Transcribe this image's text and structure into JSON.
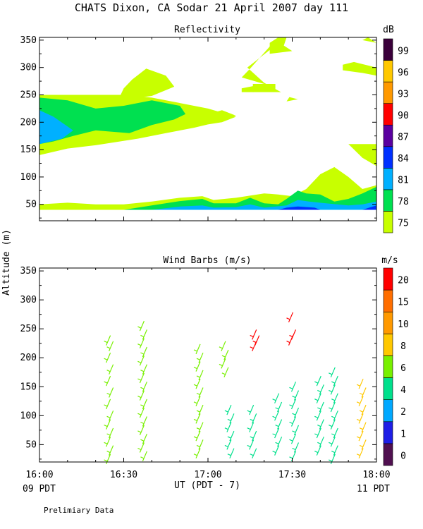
{
  "title": "CHATS Dixon, CA  Sodar  21 April 2007  day 111",
  "footer": "Prelimiary Data",
  "colors": {
    "refl": [
      "#c8ff00",
      "#00e050",
      "#00b0ff",
      "#0030ff",
      "#5a00a0",
      "#ff0000",
      "#ff9900",
      "#ffc800",
      "#3a003a"
    ],
    "wind": [
      "#501050",
      "#1e1ee6",
      "#00a8ff",
      "#00e08c",
      "#78f000",
      "#ffc800",
      "#ff9900",
      "#ff6e00",
      "#ff0000"
    ],
    "axis": "#000000",
    "background": "#ffffff"
  },
  "chart_data": [
    {
      "type": "heatmap",
      "title": "Reflectivity",
      "ylabel": "Altitude (m)",
      "x_ticks": [
        "16:00",
        "16:30",
        "17:00",
        "17:30",
        "18:00"
      ],
      "y_ticks": [
        "50",
        "100",
        "150",
        "200",
        "250",
        "300",
        "350"
      ],
      "xlim": [
        0,
        120
      ],
      "ylim": [
        20,
        355
      ],
      "colorbar_label": "dB",
      "colorbar_ticks": [
        "75",
        "78",
        "81",
        "84",
        "87",
        "90",
        "93",
        "96",
        "99"
      ],
      "layers": [
        {
          "level": 75,
          "polygons": [
            [
              [
                0,
                140
              ],
              [
                10,
                152
              ],
              [
                20,
                158
              ],
              [
                35,
                170
              ],
              [
                45,
                180
              ],
              [
                55,
                190
              ],
              [
                60,
                196
              ],
              [
                65,
                200
              ],
              [
                70,
                210
              ],
              [
                60,
                225
              ],
              [
                50,
                235
              ],
              [
                40,
                245
              ],
              [
                30,
                250
              ],
              [
                20,
                250
              ],
              [
                10,
                250
              ],
              [
                0,
                250
              ]
            ],
            [
              [
                28,
                240
              ],
              [
                30,
                262
              ],
              [
                33,
                278
              ],
              [
                38,
                298
              ],
              [
                45,
                285
              ],
              [
                48,
                265
              ],
              [
                40,
                248
              ]
            ],
            [
              [
                60,
                215
              ],
              [
                65,
                222
              ],
              [
                70,
                212
              ],
              [
                62,
                205
              ]
            ],
            [
              [
                72,
                255
              ],
              [
                72,
                262
              ],
              [
                80,
                270
              ],
              [
                72,
                282
              ],
              [
                75,
                298
              ],
              [
                84,
                350
              ],
              [
                84,
                340
              ],
              [
                74,
                300
              ],
              [
                80,
                272
              ],
              [
                86,
                255
              ]
            ],
            [
              [
                76,
                255
              ],
              [
                76,
                270
              ],
              [
                84,
                270
              ],
              [
                84,
                258
              ]
            ],
            [
              [
                82,
                325
              ],
              [
                82,
                345
              ],
              [
                85,
                355
              ],
              [
                88,
                355
              ],
              [
                87,
                340
              ],
              [
                90,
                330
              ]
            ],
            [
              [
                88,
                238
              ],
              [
                89,
                246
              ],
              [
                92,
                242
              ]
            ],
            [
              [
                108,
                295
              ],
              [
                108,
                305
              ],
              [
                112,
                310
              ],
              [
                120,
                300
              ],
              [
                120,
                285
              ],
              [
                115,
                290
              ]
            ],
            [
              [
                115,
                350
              ],
              [
                117,
                355
              ],
              [
                120,
                345
              ]
            ],
            [
              [
                110,
                160
              ],
              [
                120,
                160
              ],
              [
                120,
                120
              ],
              [
                115,
                135
              ]
            ],
            [
              [
                0,
                40
              ],
              [
                0,
                50
              ],
              [
                10,
                53
              ],
              [
                20,
                50
              ],
              [
                30,
                50
              ],
              [
                40,
                55
              ],
              [
                50,
                62
              ],
              [
                58,
                65
              ],
              [
                62,
                58
              ],
              [
                70,
                62
              ],
              [
                80,
                70
              ],
              [
                85,
                68
              ],
              [
                90,
                65
              ],
              [
                95,
                78
              ],
              [
                100,
                105
              ],
              [
                105,
                118
              ],
              [
                110,
                100
              ],
              [
                115,
                78
              ],
              [
                120,
                85
              ],
              [
                120,
                40
              ]
            ]
          ]
        },
        {
          "level": 78,
          "polygons": [
            [
              [
                0,
                160
              ],
              [
                5,
                165
              ],
              [
                12,
                175
              ],
              [
                20,
                185
              ],
              [
                32,
                180
              ],
              [
                40,
                195
              ],
              [
                48,
                205
              ],
              [
                52,
                215
              ],
              [
                50,
                230
              ],
              [
                40,
                240
              ],
              [
                30,
                230
              ],
              [
                20,
                225
              ],
              [
                10,
                240
              ],
              [
                0,
                245
              ]
            ],
            [
              [
                30,
                40
              ],
              [
                40,
                48
              ],
              [
                50,
                56
              ],
              [
                58,
                60
              ],
              [
                62,
                52
              ],
              [
                70,
                52
              ],
              [
                75,
                62
              ],
              [
                80,
                52
              ],
              [
                85,
                50
              ],
              [
                88,
                60
              ],
              [
                92,
                75
              ],
              [
                95,
                70
              ],
              [
                100,
                68
              ],
              [
                105,
                55
              ],
              [
                110,
                60
              ],
              [
                115,
                70
              ],
              [
                120,
                82
              ],
              [
                120,
                40
              ]
            ]
          ]
        },
        {
          "level": 81,
          "polygons": [
            [
              [
                0,
                160
              ],
              [
                8,
                170
              ],
              [
                12,
                185
              ],
              [
                5,
                210
              ],
              [
                0,
                222
              ]
            ],
            [
              [
                40,
                40
              ],
              [
                50,
                46
              ],
              [
                58,
                48
              ],
              [
                62,
                44
              ],
              [
                70,
                45
              ],
              [
                75,
                50
              ],
              [
                80,
                44
              ],
              [
                88,
                48
              ],
              [
                92,
                58
              ],
              [
                96,
                55
              ],
              [
                102,
                52
              ],
              [
                110,
                48
              ],
              [
                115,
                50
              ],
              [
                120,
                55
              ],
              [
                120,
                40
              ]
            ]
          ]
        },
        {
          "level": 84,
          "polygons": [
            [
              [
                85,
                40
              ],
              [
                88,
                44
              ],
              [
                92,
                46
              ],
              [
                98,
                44
              ],
              [
                100,
                40
              ]
            ],
            [
              [
                115,
                40
              ],
              [
                118,
                45
              ],
              [
                120,
                48
              ],
              [
                120,
                40
              ]
            ]
          ]
        }
      ]
    },
    {
      "type": "scatter",
      "title": "Wind Barbs (m/s)",
      "xlabel": "UT  (PDT - 7)",
      "x_ticks": [
        "16:00",
        "16:30",
        "17:00",
        "17:30",
        "18:00"
      ],
      "x_sublabels": [
        "09 PDT",
        "11 PDT"
      ],
      "y_ticks": [
        "50",
        "100",
        "150",
        "200",
        "250",
        "300",
        "350"
      ],
      "xlim": [
        0,
        120
      ],
      "ylim": [
        20,
        355
      ],
      "colorbar_label": "m/s",
      "colorbar_ticks": [
        "0",
        "1",
        "2",
        "4",
        "6",
        "8",
        "10",
        "15",
        "20"
      ],
      "columns": [
        {
          "x": 25,
          "speed": 7,
          "heights": [
            230,
            220,
            200,
            180,
            160,
            140,
            120,
            100,
            85,
            70,
            55,
            40,
            25
          ]
        },
        {
          "x": 37,
          "speed": 7,
          "heights": [
            255,
            240,
            225,
            210,
            195,
            180,
            165,
            150,
            135,
            120,
            105,
            90,
            75,
            60,
            45,
            30
          ]
        },
        {
          "x": 57,
          "speed": 6,
          "heights": [
            215,
            200,
            185,
            170,
            155,
            140,
            125,
            110,
            95,
            80,
            65,
            50,
            35
          ]
        },
        {
          "x": 66,
          "speed": 7,
          "heights": [
            220,
            205,
            190,
            175
          ]
        },
        {
          "x": 68,
          "speed": 5,
          "heights": [
            110,
            95,
            80,
            65,
            50,
            35
          ]
        },
        {
          "x": 76,
          "speed": 5,
          "heights": [
            110,
            95,
            80,
            65,
            50,
            35
          ]
        },
        {
          "x": 77,
          "speed": 20,
          "heights": [
            240,
            230,
            220
          ]
        },
        {
          "x": 85,
          "speed": 5,
          "heights": [
            130,
            115,
            100,
            85,
            70,
            55,
            40
          ]
        },
        {
          "x": 90,
          "speed": 20,
          "heights": [
            270,
            240,
            230
          ]
        },
        {
          "x": 91,
          "speed": 4,
          "heights": [
            150,
            135,
            120,
            105,
            90,
            75,
            60,
            45,
            30
          ]
        },
        {
          "x": 100,
          "speed": 5,
          "heights": [
            160,
            145,
            130,
            115,
            100,
            85,
            70,
            55,
            40
          ]
        },
        {
          "x": 105,
          "speed": 4,
          "heights": [
            175,
            160,
            145,
            130,
            115,
            100,
            85,
            70,
            55,
            40,
            25
          ]
        },
        {
          "x": 115,
          "speed": 9,
          "heights": [
            155,
            140,
            125,
            110,
            95,
            80,
            65,
            50,
            35
          ]
        }
      ]
    }
  ]
}
